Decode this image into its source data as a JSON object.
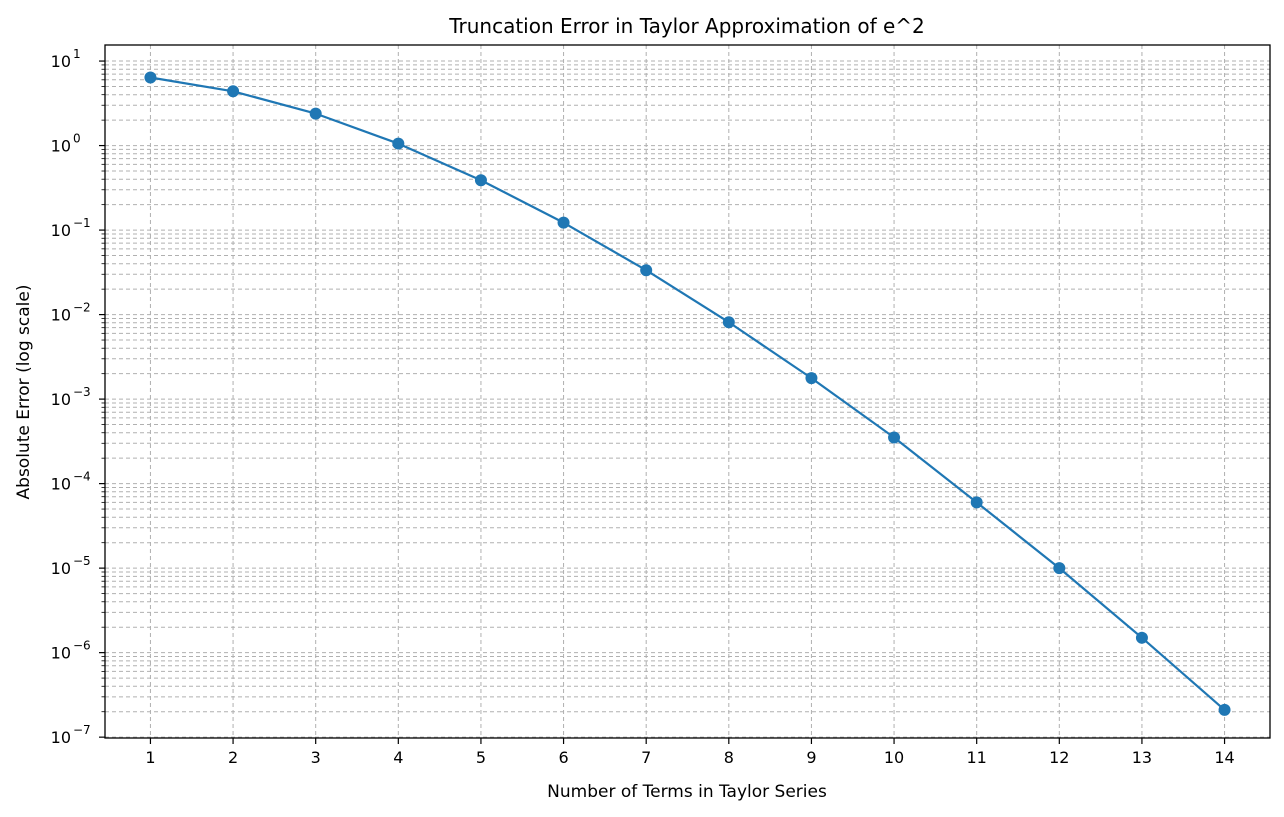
{
  "chart_data": {
    "type": "line",
    "title": "Truncation Error in Taylor Approximation of e^2",
    "xlabel": "Number of Terms in Taylor Series",
    "ylabel": "Absolute Error (log scale)",
    "yscale": "log",
    "x": [
      1,
      2,
      3,
      4,
      5,
      6,
      7,
      8,
      9,
      10,
      11,
      12,
      13,
      14
    ],
    "series": [
      {
        "values": [
          6.389,
          4.389,
          2.389,
          1.056,
          0.3891,
          0.1224,
          0.03351,
          0.00812,
          0.00177,
          0.0003514,
          6e-05,
          1e-05,
          1.5e-06,
          2.1e-07
        ],
        "color": "#1f77b4",
        "marker": "circle"
      }
    ],
    "xlim": [
      0.45,
      14.55
    ],
    "ylim_exponent": [
      -7.01,
      1.19
    ],
    "x_ticks": [
      "1",
      "2",
      "3",
      "4",
      "5",
      "6",
      "7",
      "8",
      "9",
      "10",
      "11",
      "12",
      "13",
      "14"
    ],
    "y_tick_base": "10",
    "y_tick_exponents": [
      "1",
      "0",
      "−1",
      "−2",
      "−3",
      "−4",
      "−5",
      "−6",
      "−7"
    ],
    "grid": true,
    "grid_style": "dashed",
    "grid_color": "#b0b0b0"
  }
}
